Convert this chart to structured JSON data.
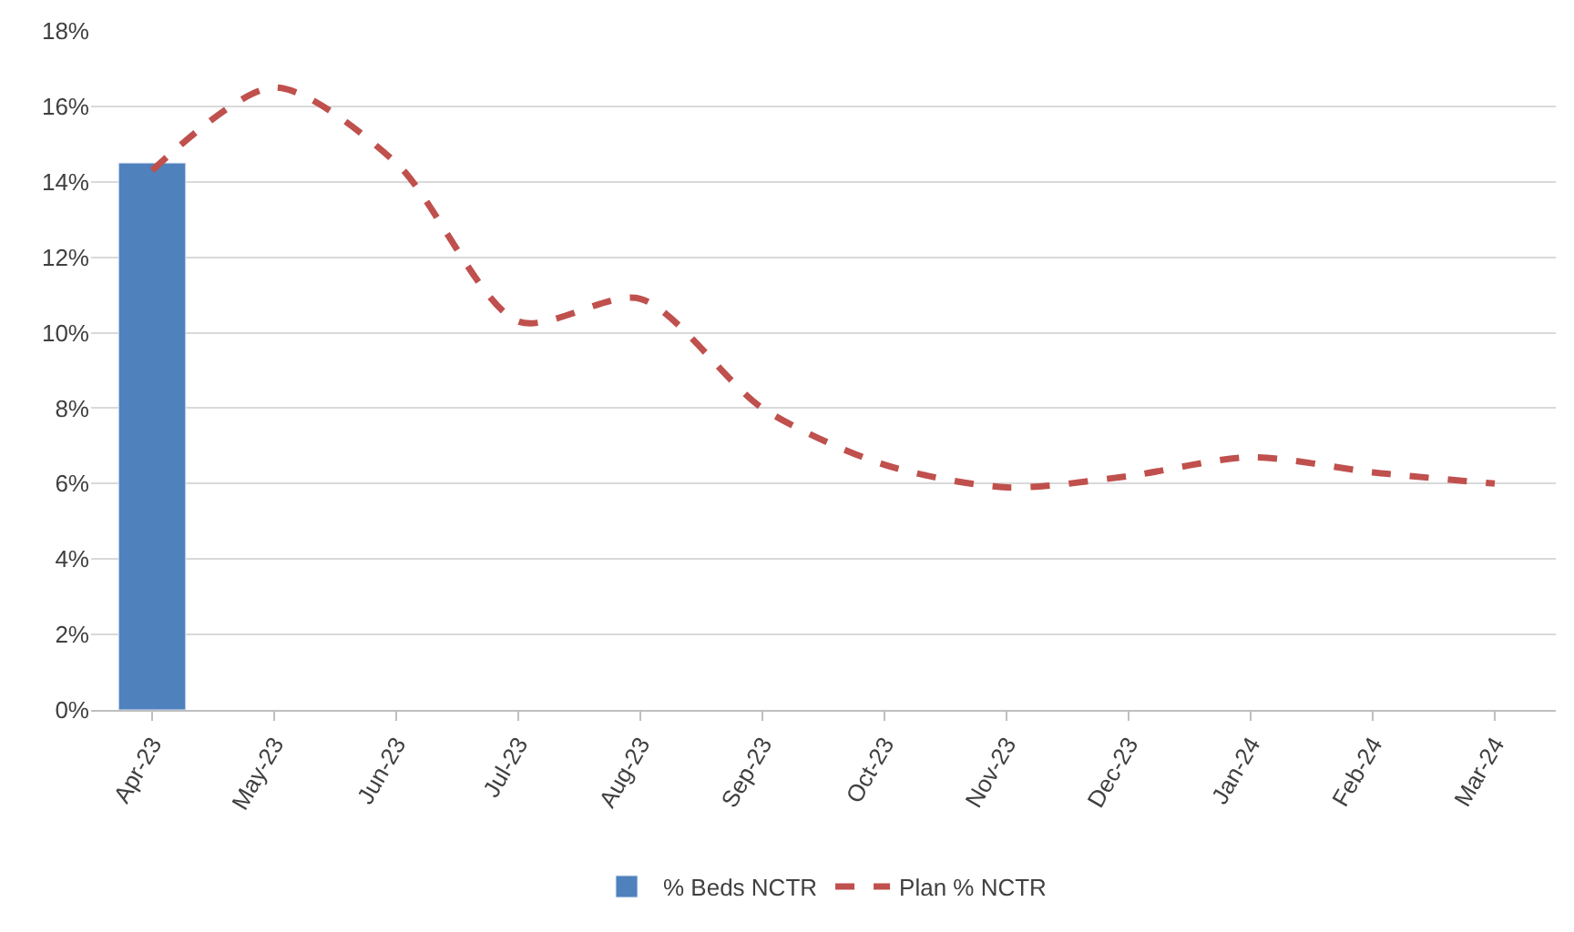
{
  "chart_data": {
    "type": "bar",
    "categories": [
      "Apr-23",
      "May-23",
      "Jun-23",
      "Jul-23",
      "Aug-23",
      "Sep-23",
      "Oct-23",
      "Nov-23",
      "Dec-23",
      "Jan-24",
      "Feb-24",
      "Mar-24"
    ],
    "series": [
      {
        "name": "% Beds NCTR",
        "color": "#4f81bd",
        "values": [
          14.5,
          null,
          null,
          null,
          null,
          null,
          null,
          null,
          null,
          null,
          null,
          null
        ]
      },
      {
        "name": "Plan % NCTR",
        "type": "line",
        "color": "#c0504d",
        "line_style": "dashed",
        "marker": "none",
        "values": [
          14.3,
          16.5,
          14.5,
          10.3,
          10.9,
          8.0,
          6.5,
          5.9,
          6.2,
          6.7,
          6.3,
          6.0
        ]
      }
    ],
    "ylim": [
      0,
      18
    ],
    "yticks": [
      {
        "value": 0,
        "label": "0%"
      },
      {
        "value": 2,
        "label": "2%"
      },
      {
        "value": 4,
        "label": "4%"
      },
      {
        "value": 6,
        "label": "6%"
      },
      {
        "value": 8,
        "label": "8%"
      },
      {
        "value": 10,
        "label": "10%"
      },
      {
        "value": 12,
        "label": "12%"
      },
      {
        "value": 14,
        "label": "14%"
      },
      {
        "value": 16,
        "label": "16%"
      },
      {
        "value": 18,
        "label": "18%"
      }
    ],
    "grid": "y",
    "legend": "bottom"
  }
}
